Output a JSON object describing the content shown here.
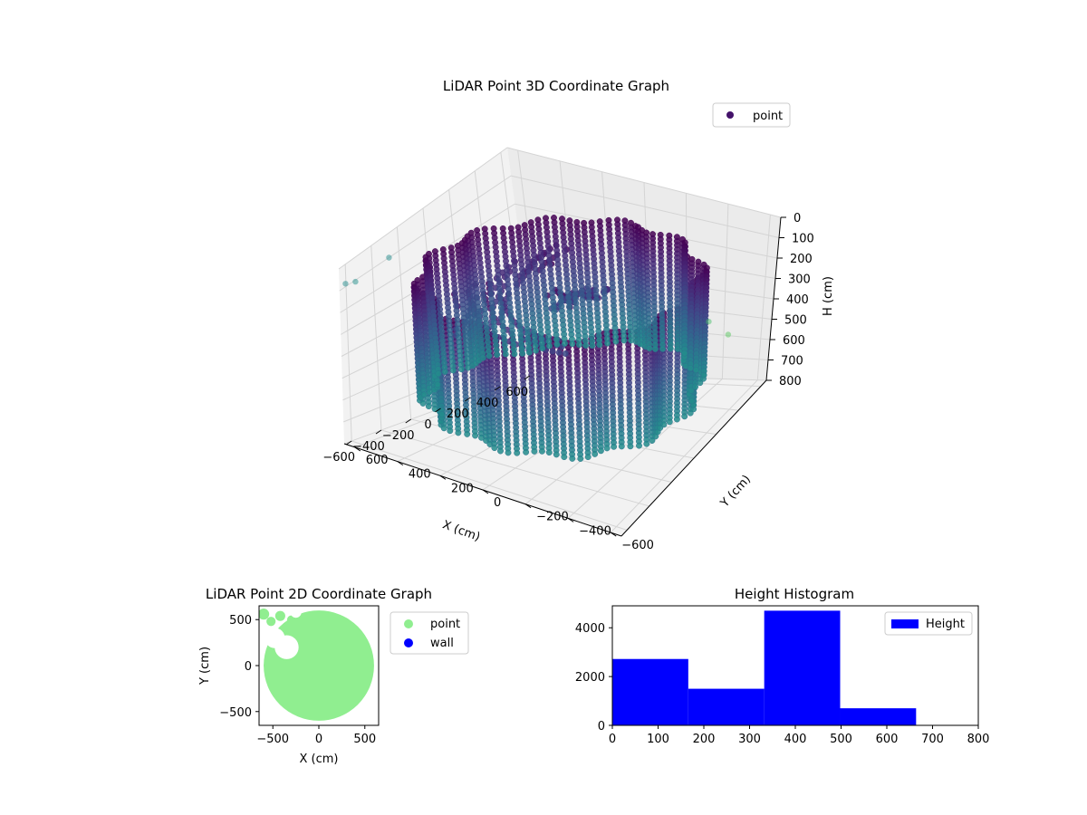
{
  "chart_data": [
    {
      "type": "scatter",
      "projection": "3d",
      "title": "LiDAR Point 3D Coordinate Graph",
      "xlabel": "X (cm)",
      "ylabel": "Y (cm)",
      "zlabel": "H (cm)",
      "xlim": [
        -650,
        650
      ],
      "ylim": [
        -650,
        650
      ],
      "zlim": [
        0,
        800
      ],
      "z_inverted": true,
      "xticks": [
        -600,
        -400,
        -200,
        0,
        200,
        400,
        600
      ],
      "yticks": [
        -600,
        -400,
        -200,
        0,
        200,
        400,
        600
      ],
      "zticks": [
        0,
        100,
        200,
        300,
        400,
        500,
        600,
        700,
        800
      ],
      "colormap": "viridis",
      "legend": {
        "position": "top-right",
        "entries": [
          "point"
        ]
      },
      "series": [
        {
          "name": "point",
          "color": "#44126a",
          "wall": {
            "shape": "cylinder",
            "radius": 590,
            "h_range": [
              150,
              650
            ],
            "count_est": 9000
          },
          "outliers": [
            {
              "x": -650,
              "y": 620,
              "h": 60
            },
            {
              "x": -560,
              "y": 630,
              "h": 90
            },
            {
              "x": -350,
              "y": 600,
              "h": 60
            },
            {
              "x": 600,
              "y": -350,
              "h": 520
            },
            {
              "x": 640,
              "y": -430,
              "h": 590
            }
          ]
        }
      ],
      "grid": true
    },
    {
      "type": "scatter",
      "title": "LiDAR Point 2D Coordinate Graph",
      "xlabel": "X (cm)",
      "ylabel": "Y (cm)",
      "xlim": [
        -650,
        650
      ],
      "ylim": [
        -650,
        650
      ],
      "xticks": [
        -500,
        0,
        500
      ],
      "yticks": [
        -500,
        0,
        500
      ],
      "legend": {
        "position": "outside-right",
        "entries": [
          "point",
          "wall"
        ]
      },
      "series": [
        {
          "name": "point",
          "color": "#90ee90",
          "region": "disk",
          "radius": 600
        },
        {
          "name": "wall",
          "color": "#0000ff",
          "values": []
        }
      ],
      "grid": false
    },
    {
      "type": "bar",
      "subtype": "histogram",
      "title": "Height Histogram",
      "xlabel": "",
      "ylabel": "",
      "xlim": [
        0,
        800
      ],
      "ylim": [
        0,
        4900
      ],
      "xticks": [
        0,
        100,
        200,
        300,
        400,
        500,
        600,
        700,
        800
      ],
      "yticks": [
        0,
        2000,
        4000
      ],
      "bins": [
        {
          "x0": 0,
          "x1": 166,
          "value": 2720
        },
        {
          "x0": 166,
          "x1": 332,
          "value": 1500
        },
        {
          "x0": 332,
          "x1": 498,
          "value": 4700
        },
        {
          "x0": 498,
          "x1": 664,
          "value": 700
        }
      ],
      "color": "#0000ff",
      "legend": {
        "position": "top-right",
        "entries": [
          "Height"
        ]
      },
      "grid": false
    }
  ]
}
